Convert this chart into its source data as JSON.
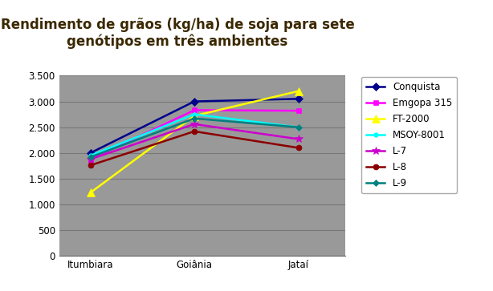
{
  "title": "Rendimento de grãos (kg/ha) de soja para sete\ngenótipos em três ambientes",
  "x_labels": [
    "Itumbiara",
    "Goiânia",
    "Jataí"
  ],
  "series": [
    {
      "name": "Conquista",
      "color": "#00008B",
      "marker": "D",
      "markersize": 5,
      "values": [
        2000,
        3000,
        3050
      ]
    },
    {
      "name": "Emgopa 315",
      "color": "#FF00FF",
      "marker": "s",
      "markersize": 5,
      "values": [
        1880,
        2830,
        2820
      ]
    },
    {
      "name": "FT-2000",
      "color": "#FFFF00",
      "marker": "^",
      "markersize": 7,
      "values": [
        1230,
        2720,
        3200
      ]
    },
    {
      "name": "MSOY-8001",
      "color": "#00FFFF",
      "marker": "o",
      "markersize": 4,
      "values": [
        1950,
        2750,
        2500
      ]
    },
    {
      "name": "L-7",
      "color": "#CC00CC",
      "marker": "*",
      "markersize": 7,
      "values": [
        1880,
        2560,
        2270
      ]
    },
    {
      "name": "L-8",
      "color": "#8B0000",
      "marker": "o",
      "markersize": 5,
      "values": [
        1760,
        2420,
        2100
      ]
    },
    {
      "name": "L-9",
      "color": "#008080",
      "marker": "D",
      "markersize": 4,
      "values": [
        1920,
        2670,
        2500
      ]
    }
  ],
  "ylim": [
    0,
    3500
  ],
  "yticks": [
    0,
    500,
    1000,
    1500,
    2000,
    2500,
    3000,
    3500
  ],
  "ytick_labels": [
    "0",
    "500",
    "1.000",
    "1.500",
    "2.000",
    "2.500",
    "3.000",
    "3.500"
  ],
  "fig_bg_color": "#ffffff",
  "plot_bg_color": "#999999",
  "title_color": "#3B2800",
  "grid_color": "#777777",
  "title_fontsize": 12,
  "legend_fontsize": 8.5,
  "tick_fontsize": 8.5,
  "linewidth": 1.8
}
